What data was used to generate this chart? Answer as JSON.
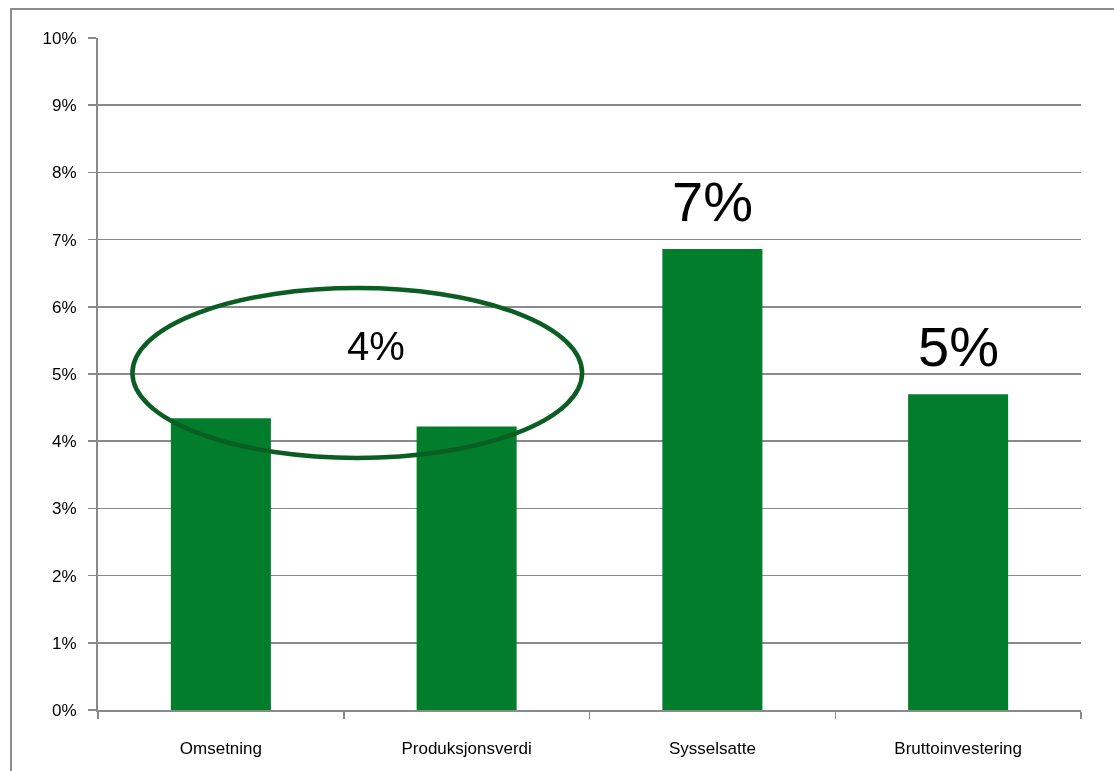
{
  "chart_data": {
    "type": "bar",
    "categories": [
      "Omsetning",
      "Produksjonsverdi",
      "Sysselsatte",
      "Bruttoinvestering"
    ],
    "values": [
      4.34,
      4.22,
      6.86,
      4.7
    ],
    "color": "#017d2b",
    "ylim": [
      0,
      10
    ],
    "yticks": [
      {
        "value": 0,
        "label": "0%"
      },
      {
        "value": 1,
        "label": "1%"
      },
      {
        "value": 2,
        "label": "2%"
      },
      {
        "value": 3,
        "label": "3%"
      },
      {
        "value": 4,
        "label": "4%"
      },
      {
        "value": 5,
        "label": "5%"
      },
      {
        "value": 6,
        "label": "6%"
      },
      {
        "value": 7,
        "label": "7%"
      },
      {
        "value": 8,
        "label": "8%"
      },
      {
        "value": 9,
        "label": "9%"
      },
      {
        "value": 10,
        "label": "10%"
      }
    ],
    "grid": "y",
    "annotations": [
      "4%",
      {
        "text": "7%",
        "x": "Sysselsatte",
        "y": 6.86
      },
      {
        "text": "5%",
        "x": "Bruttoinvestering",
        "y": 4.7
      }
    ]
  }
}
